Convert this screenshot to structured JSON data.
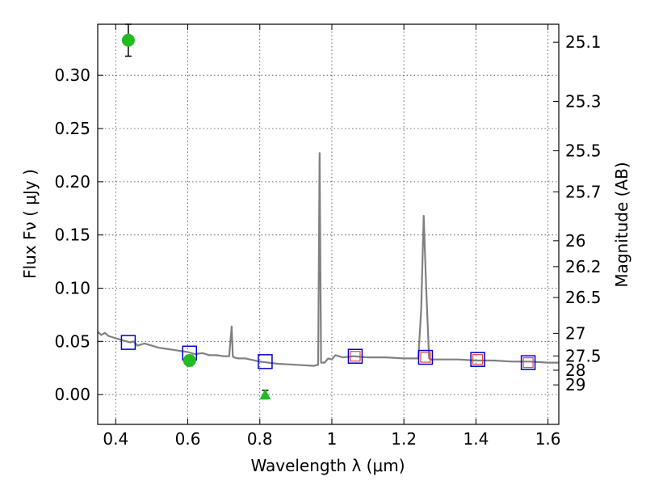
{
  "chart_data": {
    "type": "scatter",
    "title": "",
    "xlabel": "Wavelength  λ (μm)",
    "ylabel": "Flux  Fν  ( μJy )",
    "y2label": "Magnitude (AB)",
    "xlim": [
      0.35,
      1.63
    ],
    "ylim": [
      -0.028,
      0.348
    ],
    "grid": true,
    "x_ticks": [
      0.4,
      0.6,
      0.8,
      1.0,
      1.2,
      1.4,
      1.6
    ],
    "x_tick_labels": [
      "0.4",
      "0.6",
      "0.8",
      "1",
      "1.2",
      "1.4",
      "1.6"
    ],
    "y_ticks": [
      0.0,
      0.05,
      0.1,
      0.15,
      0.2,
      0.25,
      0.3
    ],
    "y_tick_labels": [
      "0.00",
      "0.05",
      "0.10",
      "0.15",
      "0.20",
      "0.25",
      "0.30"
    ],
    "y2_ticks": [
      25.1,
      25.3,
      25.5,
      25.7,
      26,
      26.2,
      26.5,
      27,
      27.5,
      28,
      29
    ],
    "y2_tick_labels": [
      "25.1",
      "25.3",
      "25.5",
      "25.7",
      "26",
      "26.2",
      "26.5",
      "27",
      "27.5",
      "28",
      "29"
    ],
    "colors": {
      "model": "#808080",
      "observed": "#22bb22",
      "model_box": "#0000cc",
      "model_box_inner": "#dd4444",
      "errorbar": "#000000"
    },
    "series": [
      {
        "kind": "model-spectrum",
        "x": [
          0.35,
          0.36,
          0.37,
          0.38,
          0.39,
          0.4,
          0.41,
          0.42,
          0.43,
          0.44,
          0.45,
          0.46,
          0.48,
          0.5,
          0.52,
          0.54,
          0.56,
          0.58,
          0.6,
          0.62,
          0.64,
          0.66,
          0.68,
          0.7,
          0.715,
          0.722,
          0.725,
          0.728,
          0.74,
          0.76,
          0.8,
          0.85,
          0.9,
          0.95,
          0.962,
          0.966,
          0.97,
          0.98,
          0.99,
          1.0,
          1.01,
          1.03,
          1.06,
          1.1,
          1.15,
          1.2,
          1.24,
          1.248,
          1.255,
          1.262,
          1.27,
          1.275,
          1.3,
          1.35,
          1.4,
          1.45,
          1.5,
          1.55,
          1.6,
          1.63
        ],
        "y": [
          0.059,
          0.056,
          0.058,
          0.055,
          0.054,
          0.053,
          0.052,
          0.051,
          0.05,
          0.049,
          0.05,
          0.046,
          0.048,
          0.046,
          0.044,
          0.043,
          0.042,
          0.041,
          0.04,
          0.038,
          0.039,
          0.037,
          0.037,
          0.036,
          0.036,
          0.064,
          0.036,
          0.035,
          0.034,
          0.034,
          0.031,
          0.029,
          0.028,
          0.027,
          0.028,
          0.227,
          0.03,
          0.03,
          0.034,
          0.033,
          0.037,
          0.035,
          0.036,
          0.035,
          0.035,
          0.034,
          0.034,
          0.08,
          0.168,
          0.1,
          0.034,
          0.033,
          0.033,
          0.033,
          0.032,
          0.032,
          0.031,
          0.031,
          0.03,
          0.03
        ]
      },
      {
        "kind": "model-photometry",
        "x": [
          0.435,
          0.605,
          0.815,
          1.065,
          1.26,
          1.405,
          1.545
        ],
        "y": [
          0.049,
          0.039,
          0.031,
          0.036,
          0.035,
          0.033,
          0.03
        ]
      },
      {
        "kind": "observed",
        "points": [
          {
            "x": 0.435,
            "y": 0.333,
            "yerr": 0.015,
            "marker": "circle"
          },
          {
            "x": 0.605,
            "y": 0.032,
            "yerr": 0.005,
            "marker": "circle"
          },
          {
            "x": 0.815,
            "y": 0.0,
            "yerr": 0.004,
            "marker": "triangle"
          }
        ]
      }
    ]
  }
}
